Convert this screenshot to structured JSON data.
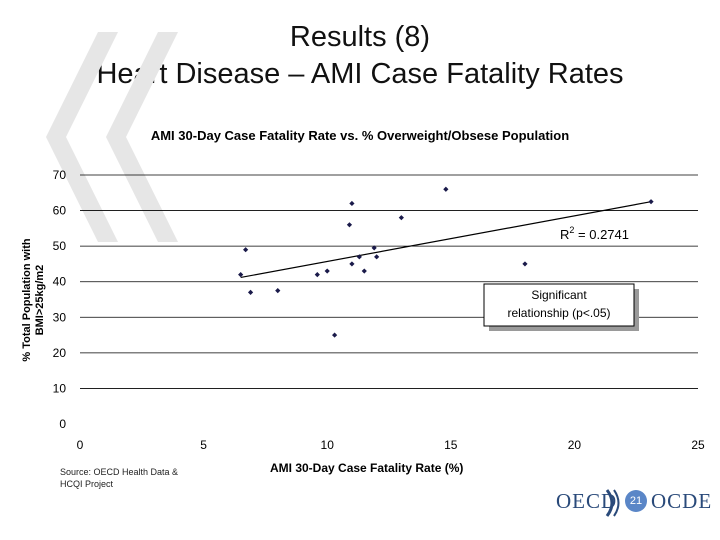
{
  "slide": {
    "title_line1": "Results (8)",
    "title_line2": "Heart Disease – AMI Case Fatality Rates",
    "source_line1": "Source: OECD Health Data &",
    "source_line2": "HCQI Project",
    "page_number": "21",
    "logo_left": "OECD",
    "logo_right": "OCDE"
  },
  "colors": {
    "points": "#1a1a4a",
    "trendline": "#000000",
    "gridline": "#000000",
    "decoration": "#e6e6e6",
    "logo": "#2a4a7a",
    "page_badge": "#5a86c7"
  },
  "chart_data": {
    "type": "scatter",
    "title": "AMI 30-Day Case Fatality Rate vs. % Overweight/Obsese Population",
    "xlabel": "AMI 30-Day Case Fatality Rate (%)",
    "ylabel_line1": "% Total Population with",
    "ylabel_line2": "BMI>25kg/m2",
    "xlim": [
      0,
      25
    ],
    "ylim": [
      0,
      70
    ],
    "xticks": [
      0,
      5,
      10,
      15,
      20,
      25
    ],
    "yticks": [
      0,
      10,
      20,
      30,
      40,
      50,
      60,
      70
    ],
    "grid": "horizontal",
    "points": [
      {
        "x": 6.5,
        "y": 42
      },
      {
        "x": 6.7,
        "y": 49
      },
      {
        "x": 6.9,
        "y": 37
      },
      {
        "x": 8.0,
        "y": 37.5
      },
      {
        "x": 9.6,
        "y": 42
      },
      {
        "x": 10.0,
        "y": 43
      },
      {
        "x": 10.3,
        "y": 25
      },
      {
        "x": 10.9,
        "y": 56
      },
      {
        "x": 11.0,
        "y": 62
      },
      {
        "x": 11.0,
        "y": 45
      },
      {
        "x": 11.3,
        "y": 47
      },
      {
        "x": 11.5,
        "y": 43
      },
      {
        "x": 11.9,
        "y": 49.5
      },
      {
        "x": 12.0,
        "y": 47
      },
      {
        "x": 13.0,
        "y": 58
      },
      {
        "x": 14.8,
        "y": 66
      },
      {
        "x": 18.0,
        "y": 45
      },
      {
        "x": 23.1,
        "y": 62.5
      }
    ],
    "trendline": {
      "x": [
        6.5,
        23.1
      ],
      "y": [
        41.2,
        62.5
      ]
    },
    "annotations": {
      "r2_prefix": "R",
      "r2_sup": "2",
      "r2_value": " = 0.2741",
      "box_line1": "Significant",
      "box_line2": "relationship (p<.05)"
    }
  }
}
